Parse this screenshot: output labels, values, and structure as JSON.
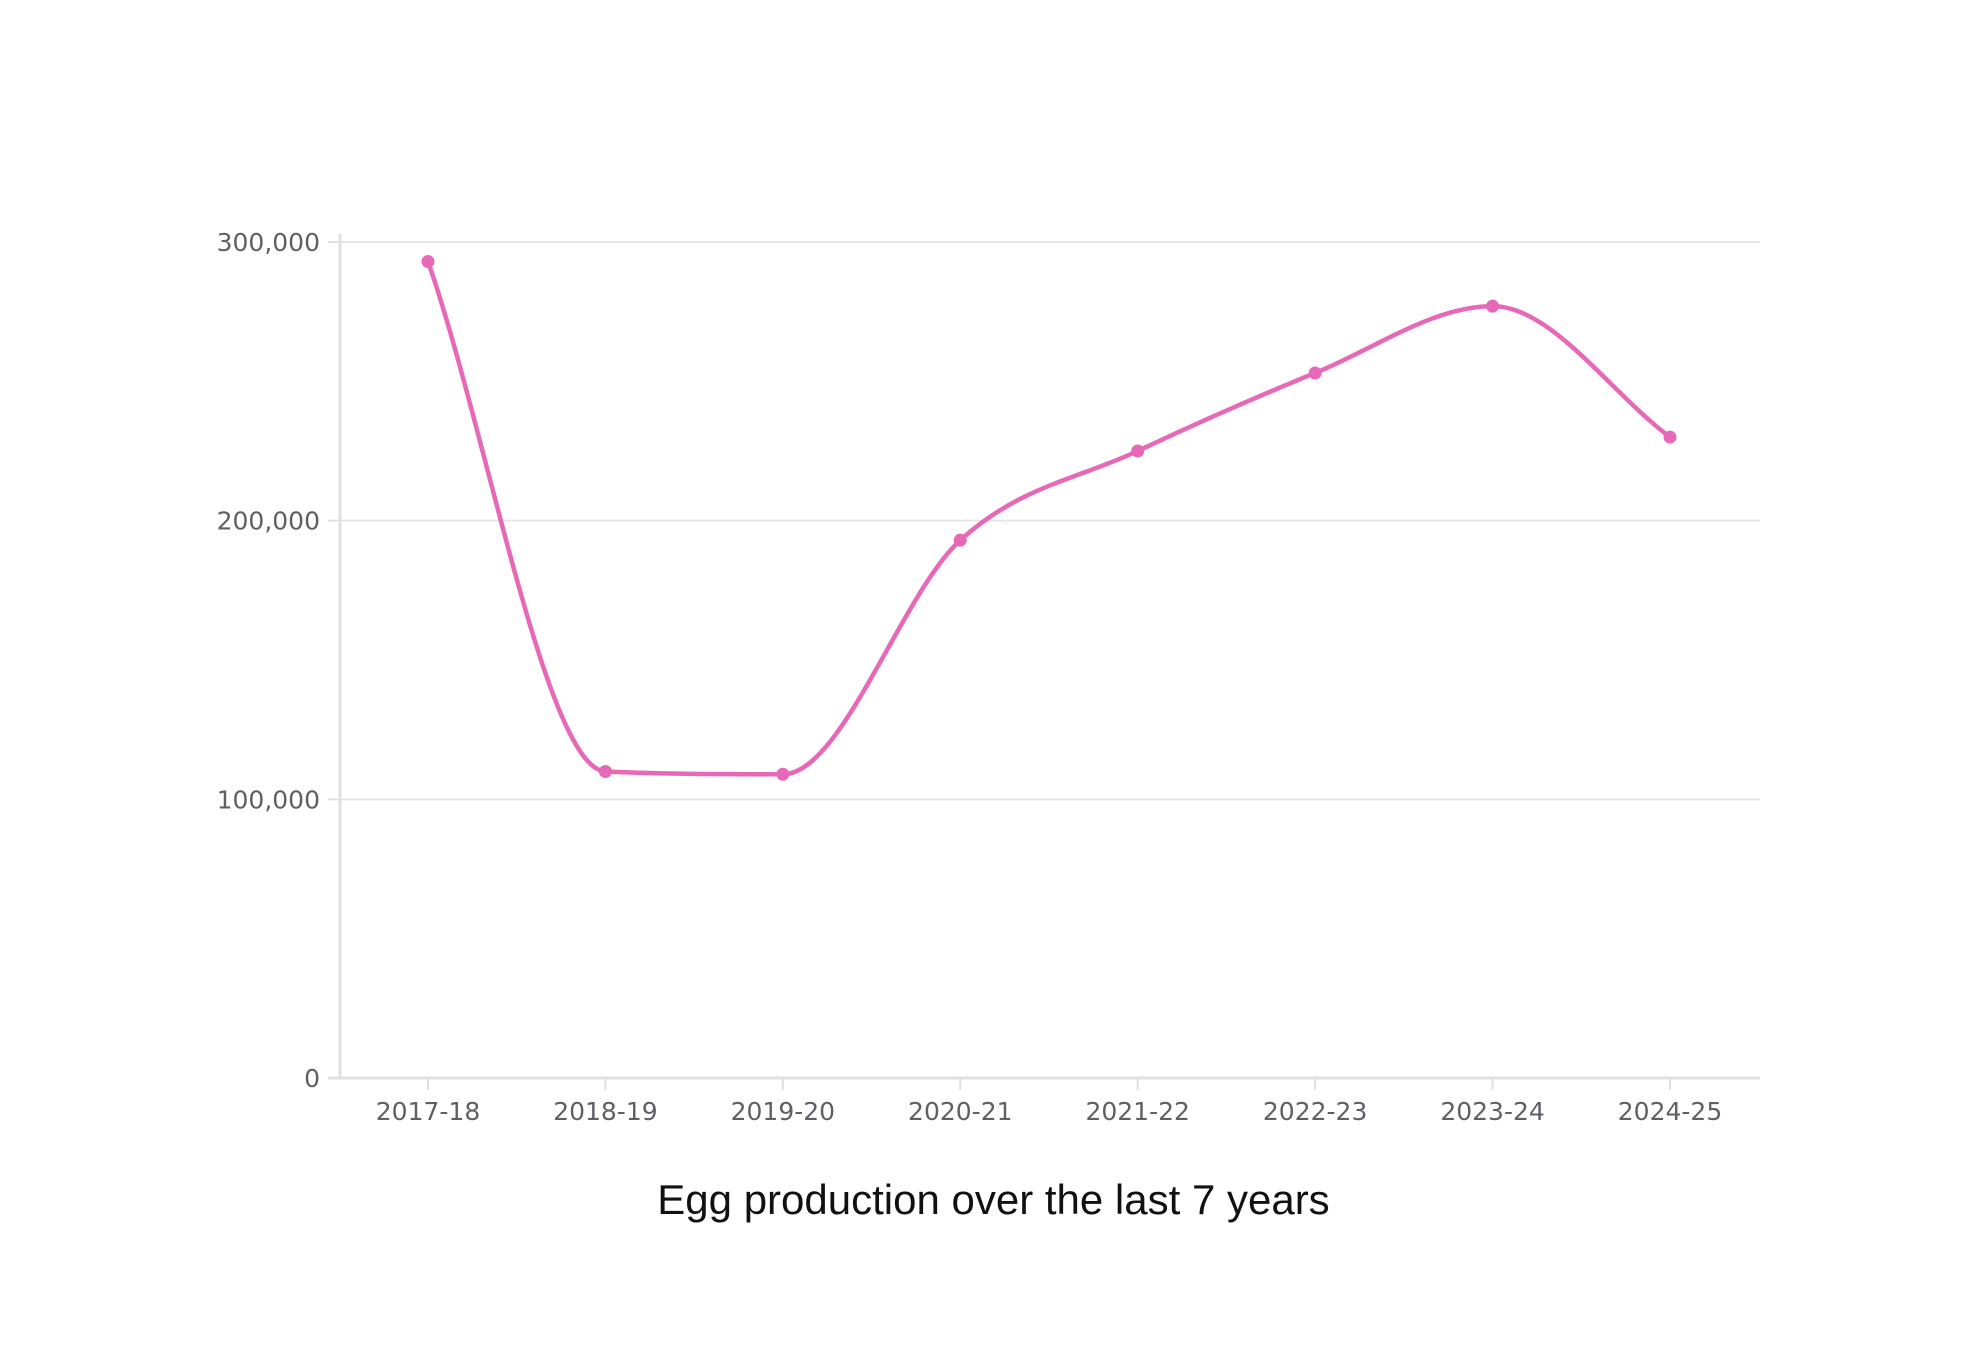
{
  "caption": "Egg production over the last 7 years",
  "chart_data": {
    "type": "line",
    "title": "",
    "xlabel": "",
    "ylabel": "",
    "categories": [
      "2017-18",
      "2018-19",
      "2019-20",
      "2020-21",
      "2021-22",
      "2022-23",
      "2023-24",
      "2024-25"
    ],
    "series": [
      {
        "values": [
          293000,
          110000,
          109000,
          193000,
          225000,
          253000,
          277000,
          230000
        ],
        "color": "#e868b8"
      }
    ],
    "ylim": [
      0,
      300000
    ],
    "yticks": [
      0,
      100000,
      200000,
      300000
    ],
    "ytick_labels": [
      "0",
      "100,000",
      "200,000",
      "300,000"
    ],
    "grid": true,
    "smooth": true,
    "colors": {
      "line": "#e868b8",
      "grid": "#e6e6e6",
      "axis": "#e0e0e0",
      "tick_text": "#5f5f66"
    }
  }
}
